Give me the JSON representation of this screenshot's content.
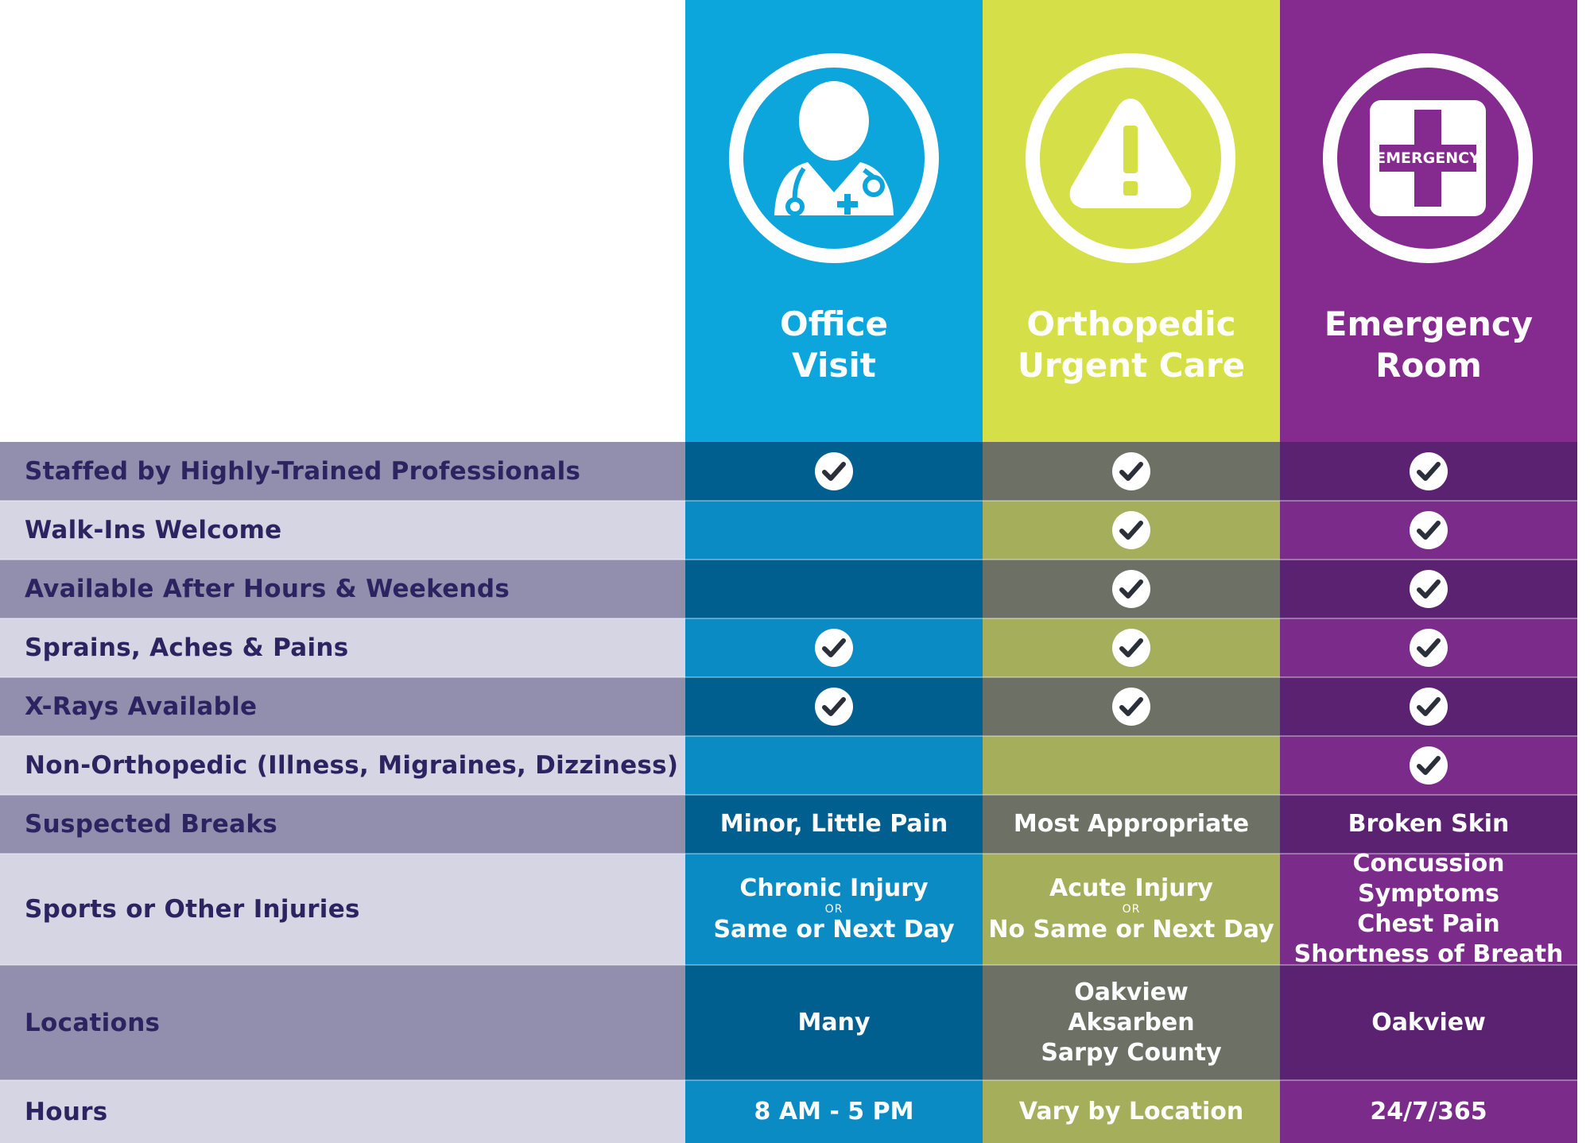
{
  "colors": {
    "office": "#0ca5dc",
    "ortho": "#d5df48",
    "er": "#852a8e",
    "label_dark": "#928fae",
    "label_light": "#d6d5e3",
    "label_text": "#2b2460"
  },
  "columns": [
    {
      "key": "office",
      "title_lines": [
        "Office",
        "Visit"
      ],
      "icon": "doctor-icon"
    },
    {
      "key": "ortho",
      "title_lines": [
        "Orthopedic",
        "Urgent Care"
      ],
      "icon": "warning-icon"
    },
    {
      "key": "er",
      "title_lines": [
        "Emergency",
        "Room"
      ],
      "icon": "emergency-icon",
      "icon_text": "EMERGENCY"
    }
  ],
  "rows": [
    {
      "label": "Staffed by Highly-Trained Professionals",
      "office": true,
      "ortho": true,
      "er": true
    },
    {
      "label": "Walk-Ins Welcome",
      "office": false,
      "ortho": true,
      "er": true
    },
    {
      "label": "Available After Hours & Weekends",
      "office": false,
      "ortho": true,
      "er": true
    },
    {
      "label": "Sprains, Aches & Pains",
      "office": true,
      "ortho": true,
      "er": true
    },
    {
      "label": "X-Rays Available",
      "office": true,
      "ortho": true,
      "er": true
    },
    {
      "label": "Non-Orthopedic (Illness, Migraines, Dizziness)",
      "office": false,
      "ortho": false,
      "er": true
    },
    {
      "label": "Suspected Breaks",
      "office": [
        "Minor, Little Pain"
      ],
      "ortho": [
        "Most Appropriate"
      ],
      "er": [
        "Broken Skin"
      ]
    },
    {
      "label": "Sports or Other Injuries",
      "office": [
        "Chronic Injury",
        "OR",
        "Same or Next Day"
      ],
      "ortho": [
        "Acute Injury",
        "OR",
        "No Same or Next Day"
      ],
      "er": [
        "Concussion Symptoms",
        "Chest Pain",
        "Shortness of Breath"
      ]
    },
    {
      "label": "Locations",
      "office": [
        "Many"
      ],
      "ortho": [
        "Oakview",
        "Aksarben",
        "Sarpy County"
      ],
      "er": [
        "Oakview"
      ]
    },
    {
      "label": "Hours",
      "office": [
        "8 AM - 5 PM"
      ],
      "ortho": [
        "Vary by Location"
      ],
      "er": [
        "24/7/365"
      ]
    }
  ]
}
